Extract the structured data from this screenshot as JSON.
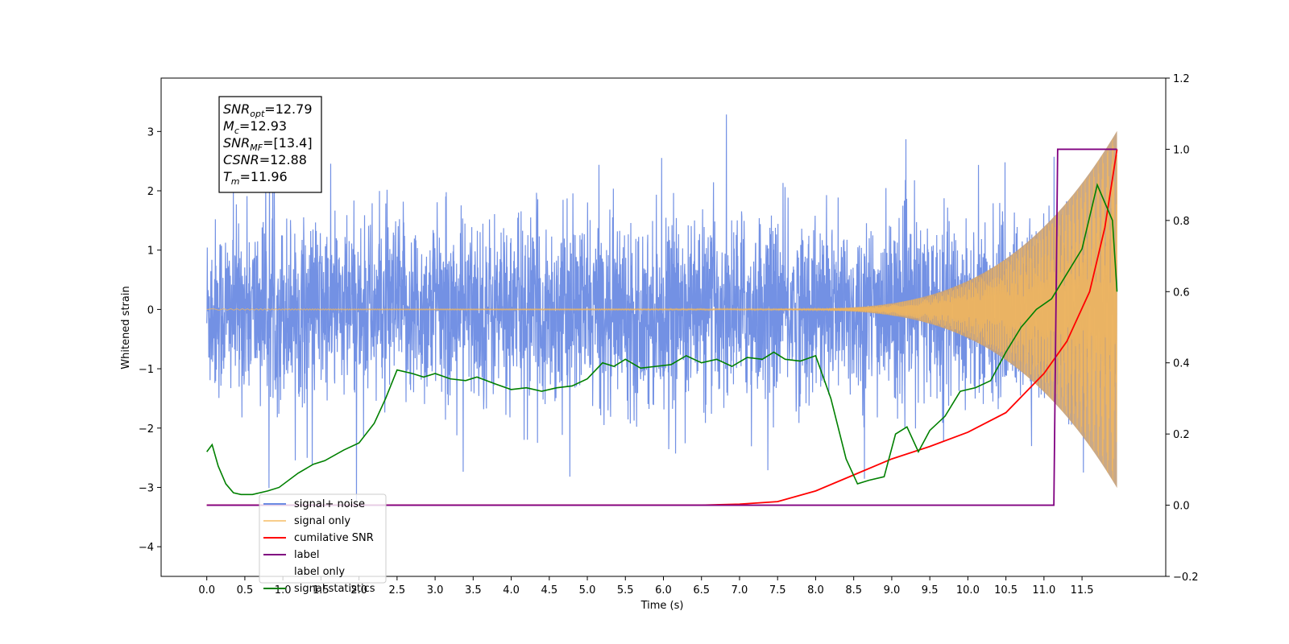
{
  "chart_data": {
    "type": "line",
    "xlabel": "Time (s)",
    "ylabel": "Whitened strain",
    "xlim": [
      -0.6,
      12.6
    ],
    "ylim": [
      -4.5,
      3.9
    ],
    "ylim_right": [
      -0.2,
      1.2
    ],
    "x_ticks": [
      "0.0",
      "0.5",
      "1.0",
      "1.5",
      "2.0",
      "2.5",
      "3.0",
      "3.5",
      "4.0",
      "4.5",
      "5.0",
      "5.5",
      "6.0",
      "6.5",
      "7.0",
      "7.5",
      "8.0",
      "8.5",
      "9.0",
      "9.5",
      "10.0",
      "10.5",
      "11.0",
      "11.5"
    ],
    "y_ticks_left": [
      "3",
      "2",
      "1",
      "0",
      "−1",
      "−2",
      "−3",
      "−4"
    ],
    "y_ticks_right": [
      "1.2",
      "1.0",
      "0.8",
      "0.6",
      "0.4",
      "0.2",
      "0.0",
      "−0.2"
    ],
    "grid": false,
    "legend_position": "lower-left",
    "series": [
      {
        "name": "signal+ noise",
        "axis": "left",
        "color": "#6b8be3",
        "description_values": {
          "noise_std": 0.75,
          "range": [
            -4.1,
            3.5
          ],
          "t_start": 0.0,
          "t_end": 11.96
        }
      },
      {
        "name": "signal only",
        "axis": "left",
        "color": "#f5b85a",
        "description_values": {
          "chirp_start": 7.5,
          "t_end": 11.96,
          "peak_amplitude": 3.0
        }
      },
      {
        "name": "cumilative SNR",
        "axis": "right",
        "x": [
          0.0,
          6.5,
          7.0,
          7.5,
          8.0,
          8.5,
          9.0,
          9.5,
          10.0,
          10.5,
          11.0,
          11.3,
          11.6,
          11.8,
          11.96
        ],
        "y": [
          0.0,
          0.0,
          0.003,
          0.01,
          0.04,
          0.085,
          0.13,
          0.165,
          0.205,
          0.26,
          0.37,
          0.46,
          0.6,
          0.78,
          1.0
        ],
        "color": "#ff0000"
      },
      {
        "name": "label",
        "axis": "right",
        "x": [
          0.0,
          11.13,
          11.18,
          11.96
        ],
        "y": [
          0.0,
          0.0,
          1.0,
          1.0
        ],
        "color": "#800080"
      },
      {
        "name": "label only",
        "axis": "right",
        "hidden": true,
        "color": "#800080"
      },
      {
        "name": "signal statistics",
        "axis": "right",
        "x": [
          0.0,
          0.07,
          0.15,
          0.25,
          0.35,
          0.45,
          0.6,
          0.8,
          0.95,
          1.2,
          1.4,
          1.55,
          1.8,
          2.0,
          2.2,
          2.35,
          2.5,
          2.7,
          2.85,
          3.0,
          3.2,
          3.4,
          3.55,
          3.8,
          4.0,
          4.2,
          4.4,
          4.6,
          4.8,
          5.0,
          5.2,
          5.35,
          5.5,
          5.7,
          5.9,
          6.1,
          6.3,
          6.5,
          6.7,
          6.9,
          7.1,
          7.3,
          7.45,
          7.6,
          7.8,
          8.0,
          8.2,
          8.4,
          8.55,
          8.7,
          8.9,
          9.05,
          9.2,
          9.35,
          9.5,
          9.7,
          9.9,
          10.1,
          10.3,
          10.5,
          10.7,
          10.9,
          11.1,
          11.3,
          11.5,
          11.7,
          11.8,
          11.9,
          11.96
        ],
        "y": [
          0.15,
          0.17,
          0.11,
          0.06,
          0.035,
          0.03,
          0.03,
          0.04,
          0.05,
          0.09,
          0.115,
          0.125,
          0.155,
          0.175,
          0.23,
          0.3,
          0.38,
          0.37,
          0.36,
          0.37,
          0.355,
          0.35,
          0.36,
          0.34,
          0.325,
          0.33,
          0.32,
          0.33,
          0.335,
          0.355,
          0.4,
          0.39,
          0.41,
          0.385,
          0.39,
          0.395,
          0.42,
          0.4,
          0.41,
          0.39,
          0.415,
          0.41,
          0.43,
          0.41,
          0.405,
          0.42,
          0.3,
          0.13,
          0.06,
          0.07,
          0.08,
          0.2,
          0.22,
          0.15,
          0.21,
          0.25,
          0.32,
          0.33,
          0.35,
          0.43,
          0.5,
          0.55,
          0.58,
          0.65,
          0.72,
          0.9,
          0.85,
          0.8,
          0.6
        ],
        "color": "#008000"
      }
    ],
    "annotation_box": {
      "lines": [
        {
          "label": "SNR",
          "sub": "opt",
          "value": "=12.79"
        },
        {
          "label": "M",
          "sub": "c",
          "value": "=12.93"
        },
        {
          "label": "SNR",
          "sub": "MF",
          "value": "=[13.4]"
        },
        {
          "label": "CSNR",
          "sub": "",
          "value": "=12.88"
        },
        {
          "label": "T",
          "sub": "m",
          "value": "=11.96"
        }
      ]
    }
  }
}
